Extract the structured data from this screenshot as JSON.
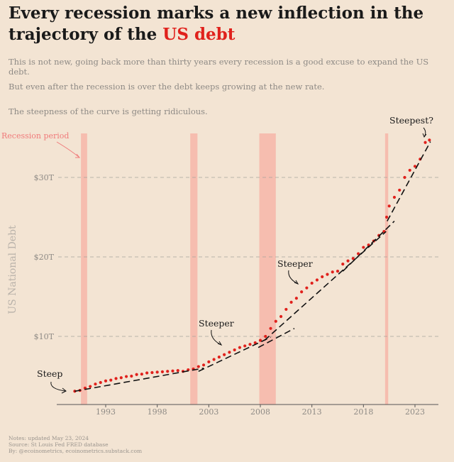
{
  "title_prefix": "Every recession marks a new inflection in the trajectory of the ",
  "title_highlight": "US debt",
  "subtitles": [
    "This is not new, going back more than thirty years every recession is a good excuse to expand the US debt.",
    "But even after the recession is over the debt keeps growing at the new rate.",
    "The steepness of the curve is getting ridiculous."
  ],
  "notes": [
    "Notes: updated May 23, 2024",
    "Source: St Louis Fed FRED database",
    "By: @ecoinometrics, ecoinometrics.substack.com"
  ],
  "colors": {
    "background": "#f3e4d3",
    "accent": "#e0211c",
    "recession": "#f6b6a8",
    "trend": "#111111"
  },
  "chart_data": {
    "type": "scatter",
    "title": "Every recession marks a new inflection in the trajectory of the US debt",
    "xlabel": "",
    "ylabel": "US National Debt",
    "xlim": [
      1988.5,
      2025
    ],
    "ylim": [
      0,
      35
    ],
    "x_ticks": [
      {
        "value": 1993,
        "label": "1993"
      },
      {
        "value": 1998,
        "label": "1998"
      },
      {
        "value": 2003,
        "label": "2003"
      },
      {
        "value": 2008,
        "label": "2008"
      },
      {
        "value": 2013,
        "label": "2013"
      },
      {
        "value": 2018,
        "label": "2018"
      },
      {
        "value": 2023,
        "label": "2023"
      }
    ],
    "y_ticks": [
      {
        "value": 10,
        "label": "$10T"
      },
      {
        "value": 20,
        "label": "$20T"
      },
      {
        "value": 30,
        "label": "$30T"
      }
    ],
    "grid": "horizontal dashed",
    "recessions": [
      {
        "start": 1990.6,
        "end": 1991.2
      },
      {
        "start": 2001.2,
        "end": 2001.9
      },
      {
        "start": 2007.9,
        "end": 2009.5
      },
      {
        "start": 2020.1,
        "end": 2020.4
      }
    ],
    "series": [
      {
        "name": "US National Debt ($T)",
        "x": [
          1990.0,
          1990.5,
          1991.0,
          1991.5,
          1992.0,
          1992.5,
          1993.0,
          1993.5,
          1994.0,
          1994.5,
          1995.0,
          1995.5,
          1996.0,
          1996.5,
          1997.0,
          1997.5,
          1998.0,
          1998.5,
          1999.0,
          1999.5,
          2000.0,
          2000.5,
          2001.0,
          2001.5,
          2002.0,
          2002.5,
          2003.0,
          2003.5,
          2004.0,
          2004.5,
          2005.0,
          2005.5,
          2006.0,
          2006.5,
          2007.0,
          2007.5,
          2008.0,
          2008.5,
          2009.0,
          2009.5,
          2010.0,
          2010.5,
          2011.0,
          2011.5,
          2012.0,
          2012.5,
          2013.0,
          2013.5,
          2014.0,
          2014.5,
          2015.0,
          2015.5,
          2016.0,
          2016.5,
          2017.0,
          2017.5,
          2018.0,
          2018.5,
          2019.0,
          2019.5,
          2020.0,
          2020.25,
          2020.5,
          2021.0,
          2021.5,
          2022.0,
          2022.5,
          2023.0,
          2023.5,
          2024.0,
          2024.4
        ],
        "values": [
          3.1,
          3.2,
          3.5,
          3.7,
          4.0,
          4.2,
          4.4,
          4.5,
          4.7,
          4.8,
          4.95,
          5.0,
          5.2,
          5.25,
          5.4,
          5.45,
          5.5,
          5.55,
          5.6,
          5.65,
          5.7,
          5.6,
          5.8,
          5.9,
          6.2,
          6.4,
          6.8,
          7.1,
          7.4,
          7.7,
          8.0,
          8.3,
          8.6,
          8.8,
          9.0,
          9.2,
          9.5,
          10.0,
          11.0,
          11.9,
          12.5,
          13.4,
          14.3,
          14.8,
          15.6,
          16.1,
          16.7,
          17.1,
          17.5,
          17.8,
          18.1,
          18.2,
          19.1,
          19.5,
          19.8,
          20.4,
          21.2,
          21.5,
          22.0,
          22.7,
          23.2,
          25.0,
          26.4,
          27.5,
          28.4,
          30.0,
          30.9,
          31.4,
          32.3,
          34.4,
          34.7
        ]
      }
    ],
    "trend_lines": [
      {
        "x": [
          1990.0,
          2002.5
        ],
        "y": [
          3.1,
          6.0
        ]
      },
      {
        "x": [
          2002.0,
          2009.0
        ],
        "y": [
          5.6,
          9.9
        ]
      },
      {
        "x": [
          2007.8,
          2011.3
        ],
        "y": [
          8.6,
          11.0
        ]
      },
      {
        "x": [
          2008.4,
          2020.2
        ],
        "y": [
          9.5,
          23.2
        ]
      },
      {
        "x": [
          2016.0,
          2021.0
        ],
        "y": [
          18.2,
          24.5
        ]
      },
      {
        "x": [
          2020.3,
          2024.5
        ],
        "y": [
          24.5,
          34.5
        ]
      }
    ],
    "annotations": [
      {
        "label": "Steep"
      },
      {
        "label": "Steeper"
      },
      {
        "label": "Steeper"
      },
      {
        "label": "Steepest?"
      },
      {
        "label": "Recession period"
      }
    ]
  }
}
